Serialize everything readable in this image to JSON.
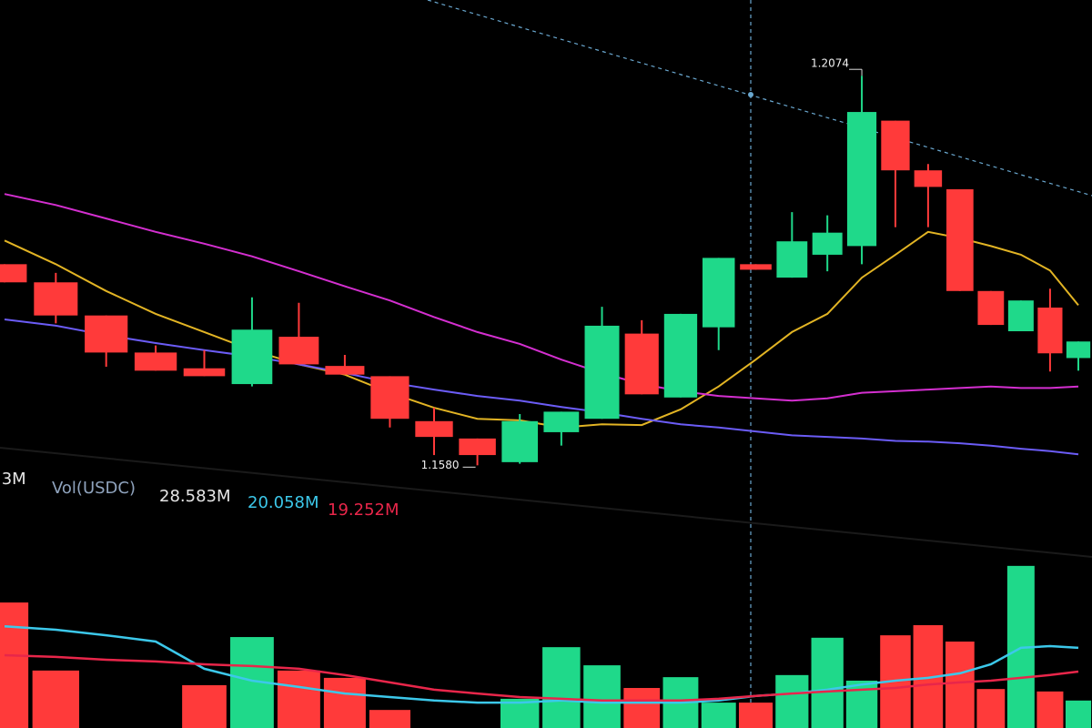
{
  "chart_data": [
    {
      "type": "candlestick",
      "open": [
        1.1835,
        1.1812,
        1.177,
        1.1723,
        1.1703,
        1.1683,
        1.1743,
        1.1706,
        1.1693,
        1.1636,
        1.1614,
        1.1584,
        1.1622,
        1.1639,
        1.1747,
        1.1666,
        1.1755,
        1.1835,
        1.1818,
        1.1847,
        1.1858,
        1.2017,
        1.1954,
        1.193,
        1.1801,
        1.175,
        1.178,
        1.1716
      ],
      "high": [
        1.1835,
        1.1824,
        1.177,
        1.1732,
        1.1726,
        1.1793,
        1.1786,
        1.172,
        1.1693,
        1.1653,
        1.1614,
        1.1645,
        1.1648,
        1.1781,
        1.1764,
        1.1772,
        1.1843,
        1.1835,
        1.1901,
        1.1897,
        1.2074,
        1.2017,
        1.1962,
        1.193,
        1.1801,
        1.1789,
        1.1804,
        1.1737
      ],
      "low": [
        1.1812,
        1.176,
        1.1705,
        1.17,
        1.1693,
        1.168,
        1.1708,
        1.1695,
        1.1628,
        1.1593,
        1.158,
        1.1582,
        1.1605,
        1.1639,
        1.167,
        1.1666,
        1.1726,
        1.1828,
        1.1818,
        1.1826,
        1.1835,
        1.1882,
        1.1882,
        1.1801,
        1.1758,
        1.175,
        1.1699,
        1.17
      ],
      "close": [
        1.1812,
        1.177,
        1.1723,
        1.17,
        1.1693,
        1.1752,
        1.1708,
        1.1695,
        1.1639,
        1.1616,
        1.1593,
        1.1636,
        1.1648,
        1.1757,
        1.167,
        1.1772,
        1.1843,
        1.1828,
        1.1864,
        1.1875,
        1.2028,
        1.1954,
        1.1933,
        1.1801,
        1.1758,
        1.1789,
        1.1722,
        1.1737
      ],
      "up_color": "#1fd98a",
      "down_color": "#ff3a3a",
      "series": [
        {
          "color": "#e2b424",
          "values": [
            1.1865,
            1.1835,
            1.1801,
            1.1772,
            1.1749,
            1.1726,
            1.1708,
            1.1695,
            1.1672,
            1.1653,
            1.1639,
            1.1637,
            1.1628,
            1.1632,
            1.1631,
            1.1651,
            1.168,
            1.1714,
            1.1749,
            1.1772,
            1.1818,
            1.1847,
            1.1876,
            1.1868,
            1.1858,
            1.1847,
            1.1827,
            1.1783
          ]
        },
        {
          "color": "#d42fd0",
          "values": [
            1.1924,
            1.191,
            1.1893,
            1.1876,
            1.1861,
            1.1845,
            1.1826,
            1.1807,
            1.1789,
            1.1768,
            1.1749,
            1.1734,
            1.1714,
            1.1697,
            1.1683,
            1.1674,
            1.1668,
            1.1665,
            1.1662,
            1.1665,
            1.1672,
            1.1674,
            1.1676,
            1.1678,
            1.168,
            1.1678,
            1.1678,
            1.168
          ]
        },
        {
          "color": "#6b5cf6",
          "values": [
            1.1765,
            1.1757,
            1.1745,
            1.1735,
            1.1726,
            1.1718,
            1.1708,
            1.1697,
            1.1685,
            1.1676,
            1.1668,
            1.1662,
            1.1654,
            1.1647,
            1.1639,
            1.1632,
            1.1628,
            1.1623,
            1.1618,
            1.1616,
            1.1614,
            1.1611,
            1.161,
            1.1608,
            1.1605,
            1.1601,
            1.1598,
            1.1594
          ]
        }
      ],
      "annotations": [
        {
          "value": 1.2074,
          "label": "1.2074"
        },
        {
          "value": 1.158,
          "label": "1.1580"
        }
      ],
      "ylim": [
        1.157,
        1.217
      ]
    },
    {
      "type": "bar",
      "label": "Vol(USDC)",
      "clipped_readout": ".3M",
      "readouts": [
        {
          "value": 28.583,
          "label": "28.583M",
          "color": "#e6e6e6"
        },
        {
          "value": 20.058,
          "label": "20.058M",
          "color": "#3cc8ea"
        },
        {
          "value": 19.252,
          "label": "19.252M",
          "color": "#e8264a"
        }
      ],
      "values": [
        43.8,
        24.3,
        5.2,
        4.7,
        20.1,
        33.9,
        24.3,
        22.2,
        13.0,
        5.2,
        6.5,
        16.2,
        31.0,
        25.8,
        19.3,
        22.4,
        15.1,
        15.1,
        23.0,
        33.7,
        21.4,
        34.4,
        37.3,
        32.6,
        19.0,
        54.3,
        18.3,
        15.7
      ],
      "series": [
        {
          "color": "#3cc8ea",
          "values": [
            37.0,
            36.0,
            34.4,
            32.6,
            24.8,
            21.4,
            19.6,
            17.7,
            16.7,
            15.7,
            15.1,
            15.1,
            15.7,
            15.1,
            15.1,
            15.1,
            15.7,
            17.0,
            17.7,
            18.8,
            20.3,
            21.4,
            22.2,
            23.5,
            26.1,
            30.8,
            31.3,
            30.8
          ]
        },
        {
          "color": "#e8264a",
          "values": [
            28.7,
            28.2,
            27.4,
            26.9,
            26.1,
            25.6,
            24.8,
            23.0,
            20.9,
            18.8,
            17.7,
            16.7,
            16.2,
            15.7,
            15.7,
            15.7,
            16.2,
            17.0,
            17.7,
            18.3,
            18.8,
            19.3,
            20.3,
            20.9,
            21.4,
            22.2,
            23.0,
            24.0
          ]
        }
      ],
      "ylim": [
        0,
        60
      ]
    }
  ]
}
